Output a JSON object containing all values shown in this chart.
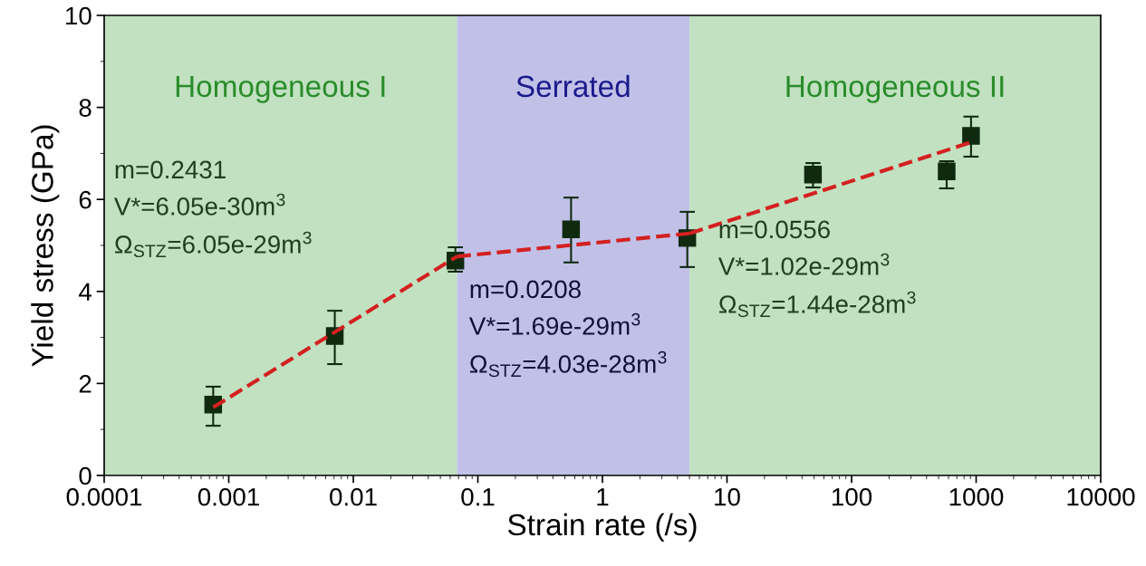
{
  "chart_data": {
    "type": "scatter",
    "xlabel": "Strain rate (/s)",
    "ylabel": "Yield stress (GPa)",
    "log": "x",
    "xlim": [
      0.0001,
      10000
    ],
    "xticks": [
      0.0001,
      0.001,
      0.01,
      0.1,
      1,
      10,
      100,
      1000,
      10000
    ],
    "ylim": [
      0,
      10
    ],
    "yticks": [
      0,
      2,
      4,
      6,
      8,
      10
    ],
    "grid": false,
    "legend": false,
    "x": [
      0.00075,
      0.0071,
      0.066,
      0.56,
      4.8,
      49,
      580,
      910
    ],
    "series": [
      {
        "marker": "square",
        "color": "#0f2a0f",
        "values": [
          1.54,
          3.03,
          4.67,
          5.35,
          5.16,
          6.54,
          6.61,
          7.38
        ],
        "errors": [
          [
            1.08,
            1.93
          ],
          [
            2.42,
            3.58
          ],
          [
            4.43,
            4.96
          ],
          [
            4.63,
            6.04
          ],
          [
            4.53,
            5.73
          ],
          [
            6.26,
            6.79
          ],
          [
            6.24,
            6.83
          ],
          [
            6.93,
            7.8
          ]
        ]
      },
      {
        "type": "line",
        "color": "#d42020",
        "line_style": "dashed",
        "x": [
          0.00075,
          0.068
        ],
        "values": [
          1.48,
          4.76
        ]
      },
      {
        "type": "line",
        "color": "#d42020",
        "line_style": "dashed",
        "x": [
          0.068,
          5.0
        ],
        "values": [
          4.76,
          5.26
        ]
      },
      {
        "type": "line",
        "color": "#d42020",
        "line_style": "dashed",
        "x": [
          5.0,
          910
        ],
        "values": [
          5.26,
          7.24
        ]
      }
    ],
    "bands": [
      {
        "axis": "x",
        "from": 0.0001,
        "to": 0.068,
        "label": "Homogeneous I",
        "color": "#c1e1c1"
      },
      {
        "axis": "x",
        "from": 0.068,
        "to": 5.0,
        "label": "Serrated",
        "color": "#c1c1e8"
      },
      {
        "axis": "x",
        "from": 5.0,
        "to": 10000,
        "label": "Homogeneous II",
        "color": "#c1e1c1"
      }
    ],
    "annotations": [
      "m=0.2431\nV*=6.05e-30m$^{3}$\nΩ$_{STZ}$=6.05e-29m$^{3}$",
      "m=0.0208\nV*=1.69e-29m$^{3}$\nΩ$_{STZ}$=4.03e-28m$^{3}$",
      "m=0.0556\nV*=1.02e-29m$^{3}$\nΩ$_{STZ}$=1.44e-28m$^{3}$"
    ]
  }
}
